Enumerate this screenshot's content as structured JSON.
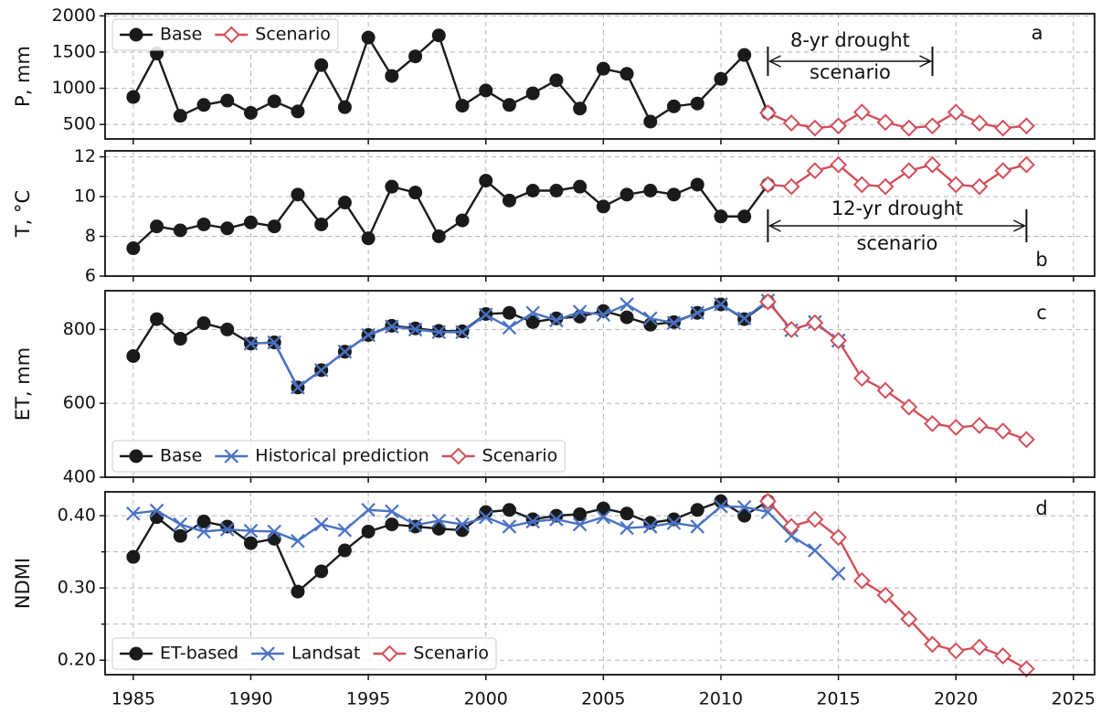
{
  "chart_data": [
    {
      "type": "line",
      "ylabel": "P, mm",
      "panel_label": "a",
      "xlim": [
        1983.8,
        2025.9
      ],
      "xticks": [
        1985,
        1990,
        1995,
        2000,
        2005,
        2010,
        2015,
        2020,
        2025
      ],
      "ylim": [
        300,
        2030
      ],
      "yticks": [
        500,
        1000,
        1500,
        2000
      ],
      "grid": true,
      "legend": "upper left",
      "series": [
        {
          "name": "Base",
          "color": "#1a1a1a",
          "marker": "circle",
          "x": [
            1985,
            1986,
            1987,
            1988,
            1989,
            1990,
            1991,
            1992,
            1993,
            1994,
            1995,
            1996,
            1997,
            1998,
            1999,
            2000,
            2001,
            2002,
            2003,
            2004,
            2005,
            2006,
            2007,
            2008,
            2009,
            2010,
            2011,
            2012
          ],
          "values": [
            880,
            1480,
            620,
            770,
            830,
            660,
            820,
            680,
            1320,
            740,
            1700,
            1170,
            1440,
            1730,
            760,
            970,
            770,
            930,
            1110,
            720,
            1270,
            1200,
            540,
            750,
            790,
            1130,
            1460,
            660
          ]
        },
        {
          "name": "Scenario",
          "color": "#d1505b",
          "marker": "diamond",
          "x": [
            2012,
            2013,
            2014,
            2015,
            2016,
            2017,
            2018,
            2019,
            2020,
            2021,
            2022,
            2023
          ],
          "values": [
            660,
            520,
            450,
            480,
            670,
            530,
            450,
            480,
            670,
            520,
            450,
            480
          ]
        }
      ],
      "annotation": {
        "lines": [
          "8-yr drought",
          "scenario"
        ],
        "x": [
          2012,
          2019
        ]
      }
    },
    {
      "type": "line",
      "ylabel": "T, °C",
      "panel_label": "b",
      "xlim": [
        1983.8,
        2025.9
      ],
      "xticks": [
        1985,
        1990,
        1995,
        2000,
        2005,
        2010,
        2015,
        2020,
        2025
      ],
      "ylim": [
        6,
        12.3
      ],
      "yticks": [
        6,
        8,
        10,
        12
      ],
      "grid": true,
      "series": [
        {
          "name": "Base",
          "color": "#1a1a1a",
          "marker": "circle",
          "x": [
            1985,
            1986,
            1987,
            1988,
            1989,
            1990,
            1991,
            1992,
            1993,
            1994,
            1995,
            1996,
            1997,
            1998,
            1999,
            2000,
            2001,
            2002,
            2003,
            2004,
            2005,
            2006,
            2007,
            2008,
            2009,
            2010,
            2011,
            2012
          ],
          "values": [
            7.4,
            8.5,
            8.3,
            8.6,
            8.4,
            8.7,
            8.5,
            10.1,
            8.6,
            9.7,
            7.9,
            10.5,
            10.2,
            8.0,
            8.8,
            10.8,
            9.8,
            10.3,
            10.3,
            10.5,
            9.5,
            10.1,
            10.3,
            10.1,
            10.6,
            9.0,
            9.0,
            10.6
          ]
        },
        {
          "name": "Scenario",
          "color": "#d1505b",
          "marker": "diamond",
          "x": [
            2012,
            2013,
            2014,
            2015,
            2016,
            2017,
            2018,
            2019,
            2020,
            2021,
            2022,
            2023
          ],
          "values": [
            10.6,
            10.5,
            11.3,
            11.6,
            10.6,
            10.5,
            11.3,
            11.6,
            10.6,
            10.5,
            11.3,
            11.6
          ]
        }
      ],
      "annotation": {
        "lines": [
          "12-yr drought",
          "scenario"
        ],
        "x": [
          2012,
          2023
        ]
      }
    },
    {
      "type": "line",
      "ylabel": "ET, mm",
      "panel_label": "c",
      "xlim": [
        1983.8,
        2025.9
      ],
      "xticks": [
        1985,
        1990,
        1995,
        2000,
        2005,
        2010,
        2015,
        2020,
        2025
      ],
      "ylim": [
        400,
        905
      ],
      "yticks": [
        400,
        600,
        800
      ],
      "grid": true,
      "legend": "lower left",
      "series": [
        {
          "name": "Base",
          "color": "#1a1a1a",
          "marker": "circle",
          "x": [
            1985,
            1986,
            1987,
            1988,
            1989,
            1990,
            1991,
            1992,
            1993,
            1994,
            1995,
            1996,
            1997,
            1998,
            1999,
            2000,
            2001,
            2002,
            2003,
            2004,
            2005,
            2006,
            2007,
            2008,
            2009,
            2010,
            2011,
            2012
          ],
          "values": [
            728,
            828,
            775,
            817,
            800,
            762,
            765,
            643,
            690,
            740,
            785,
            810,
            803,
            796,
            795,
            842,
            845,
            820,
            830,
            835,
            850,
            833,
            813,
            820,
            845,
            868,
            828,
            875
          ]
        },
        {
          "name": "Historical prediction",
          "color": "#4a72c4",
          "marker": "x",
          "x": [
            1990,
            1991,
            1992,
            1993,
            1994,
            1995,
            1996,
            1997,
            1998,
            1999,
            2000,
            2001,
            2002,
            2003,
            2004,
            2005,
            2006,
            2007,
            2008,
            2009,
            2010,
            2011,
            2012,
            2013,
            2014,
            2015
          ],
          "values": [
            762,
            765,
            643,
            690,
            740,
            785,
            808,
            800,
            793,
            793,
            840,
            805,
            845,
            825,
            848,
            840,
            868,
            830,
            818,
            845,
            868,
            830,
            878,
            798,
            820,
            770
          ]
        },
        {
          "name": "Scenario",
          "color": "#d1505b",
          "marker": "diamond",
          "x": [
            2012,
            2013,
            2014,
            2015,
            2016,
            2017,
            2018,
            2019,
            2020,
            2021,
            2022,
            2023
          ],
          "values": [
            875,
            800,
            818,
            770,
            668,
            635,
            590,
            545,
            535,
            540,
            525,
            502
          ]
        }
      ]
    },
    {
      "type": "line",
      "ylabel": "NDMI",
      "panel_label": "d",
      "xlim": [
        1983.8,
        2025.9
      ],
      "xticks": [
        1985,
        1990,
        1995,
        2000,
        2005,
        2010,
        2015,
        2020,
        2025
      ],
      "ylim": [
        0.18,
        0.433
      ],
      "yticks": [
        {
          "value": 0.2,
          "label": "0.20"
        },
        {
          "value": 0.3,
          "label": "0.30"
        },
        {
          "value": 0.4,
          "label": "0.40"
        }
      ],
      "yminorticks": [
        0.25,
        0.35
      ],
      "grid": true,
      "legend": "lower left",
      "series": [
        {
          "name": "ET-based",
          "color": "#1a1a1a",
          "marker": "circle",
          "x": [
            1985,
            1986,
            1987,
            1988,
            1989,
            1990,
            1991,
            1992,
            1993,
            1994,
            1995,
            1996,
            1997,
            1998,
            1999,
            2000,
            2001,
            2002,
            2003,
            2004,
            2005,
            2006,
            2007,
            2008,
            2009,
            2010,
            2011,
            2012
          ],
          "values": [
            0.343,
            0.398,
            0.372,
            0.392,
            0.385,
            0.362,
            0.368,
            0.295,
            0.323,
            0.352,
            0.378,
            0.388,
            0.385,
            0.382,
            0.38,
            0.405,
            0.408,
            0.395,
            0.4,
            0.402,
            0.41,
            0.403,
            0.39,
            0.395,
            0.408,
            0.42,
            0.4,
            0.42
          ]
        },
        {
          "name": "Landsat",
          "color": "#4a72c4",
          "marker": "x",
          "x": [
            1985,
            1986,
            1987,
            1988,
            1989,
            1990,
            1991,
            1992,
            1993,
            1994,
            1995,
            1996,
            1997,
            1998,
            1999,
            2000,
            2001,
            2002,
            2003,
            2004,
            2005,
            2006,
            2007,
            2008,
            2009,
            2010,
            2011,
            2012,
            2013,
            2014,
            2015
          ],
          "values": [
            0.403,
            0.407,
            0.388,
            0.378,
            0.381,
            0.379,
            0.378,
            0.365,
            0.388,
            0.38,
            0.408,
            0.406,
            0.387,
            0.393,
            0.388,
            0.398,
            0.385,
            0.392,
            0.395,
            0.388,
            0.398,
            0.383,
            0.385,
            0.39,
            0.385,
            0.413,
            0.412,
            0.405,
            0.372,
            0.352,
            0.32
          ]
        },
        {
          "name": "Scenario",
          "color": "#d1505b",
          "marker": "diamond",
          "x": [
            2012,
            2013,
            2014,
            2015,
            2016,
            2017,
            2018,
            2019,
            2020,
            2021,
            2022,
            2023
          ],
          "values": [
            0.42,
            0.385,
            0.395,
            0.37,
            0.31,
            0.29,
            0.257,
            0.222,
            0.213,
            0.218,
            0.206,
            0.188
          ]
        }
      ]
    }
  ]
}
